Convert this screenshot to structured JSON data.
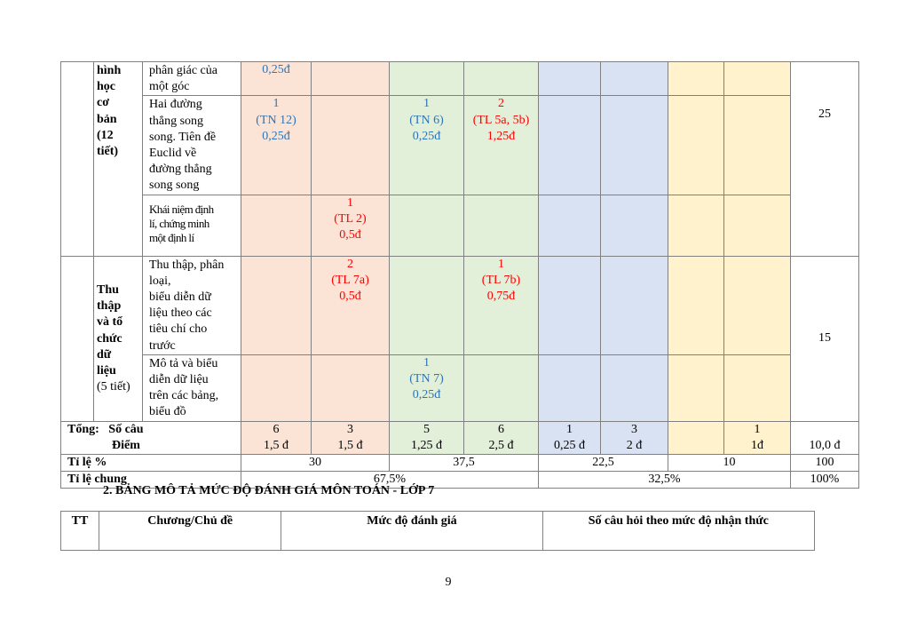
{
  "matrix": {
    "topic1": {
      "line1": "hình",
      "line2": "học",
      "line3": "cơ",
      "line4": "bản",
      "line5": "(12",
      "line6": "tiết)"
    },
    "row_bisector": {
      "lesson_l1": "phân giác của",
      "lesson_l2": "một góc",
      "tn_nb": "0,25đ"
    },
    "row_parallel": {
      "lesson": [
        "Hai đường",
        "thẳng song",
        "song. Tiên đề",
        "Euclid về",
        "đường thẳng",
        "song song"
      ],
      "tn_nb": [
        "1",
        "(TN 12)",
        "0,25đ"
      ],
      "tn_th": [
        "1",
        "(TN 6)",
        "0,25đ"
      ],
      "tl_th": [
        "2",
        "(TL 5a, 5b)",
        "1,25đ"
      ],
      "pct": "25"
    },
    "row_theorem": {
      "lesson": [
        "Khái niệm định",
        "lí, chứng minh",
        "một định lí"
      ],
      "tl_nb": [
        "1",
        "(TL 2)",
        "0,5đ"
      ]
    },
    "topic2": {
      "line1": "Thu",
      "line2": "thập",
      "line3": "và tổ",
      "line4": "chức",
      "line5": "dữ",
      "line6": "liệu",
      "line7": "(5 tiết)"
    },
    "row_collect": {
      "lesson": [
        "Thu thập, phân",
        "loại,",
        "biểu diễn dữ",
        "liệu theo các",
        "tiêu chí cho",
        "trước"
      ],
      "tl_nb": [
        "2",
        "(TL 7a)",
        "0,5đ"
      ],
      "tl_th": [
        "1",
        "(TL 7b)",
        "0,75đ"
      ],
      "pct": "15"
    },
    "row_describe": {
      "lesson": [
        "Mô tả và biểu",
        "diễn dữ liệu",
        "trên các bảng,",
        "biểu đồ"
      ],
      "tn_th": [
        "1",
        "(TN 7)",
        "0,25đ"
      ]
    },
    "totals": {
      "label1": "Tổng:",
      "label2": "Số câu",
      "label3": "Điểm",
      "counts": [
        "6",
        "3",
        "5",
        "6",
        "1",
        "3",
        "",
        "1"
      ],
      "points": [
        "1,5 đ",
        "1,5 đ",
        "1,25 đ",
        "2,5 đ",
        "0,25 đ",
        "2 đ",
        "",
        "1đ"
      ],
      "grand": "10,0 đ"
    },
    "ratio": {
      "label": "Tỉ lệ %",
      "values": [
        "30",
        "37,5",
        "22,5",
        "10"
      ],
      "total": "100"
    },
    "overall": {
      "label": "Tỉ lệ chung",
      "values": [
        "67,5%",
        "32,5%"
      ],
      "total": "100%"
    }
  },
  "section_heading": "2. BẢNG MÔ TẢ MỨC ĐỘ ĐÁNH GIÁ MÔN TOÁN - LỚP 7",
  "desc_table": {
    "headers": [
      "TT",
      "Chương/Chủ đề",
      "Mức độ đánh giá",
      "Số câu hỏi theo mức độ nhận thức"
    ]
  },
  "page_number": "9",
  "colors": {
    "pink": "#fbe4d5",
    "green": "#e2efd9",
    "blue": "#d9e2f3",
    "yellow": "#fff2cc",
    "blue_text": "#2e74b5",
    "red_text": "#ff0000"
  }
}
